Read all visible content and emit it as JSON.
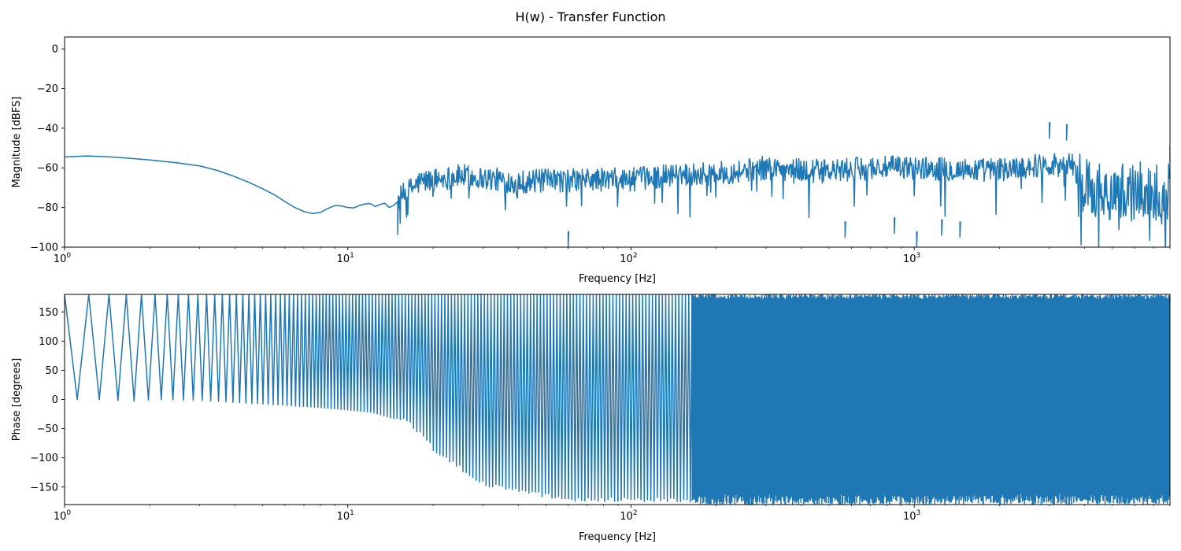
{
  "figure": {
    "title": "H(w) - Transfer Function"
  },
  "chart_data": [
    {
      "type": "line",
      "name": "magnitude",
      "xlabel": "Frequency [Hz]",
      "ylabel": "Magnitude [dBFS]",
      "xscale": "log",
      "xlim": [
        1,
        8000
      ],
      "ylim": [
        -100,
        6
      ],
      "xticks": [
        {
          "value": 1,
          "base": "10",
          "exp": "0"
        },
        {
          "value": 10,
          "base": "10",
          "exp": "1"
        },
        {
          "value": 100,
          "base": "10",
          "exp": "2"
        },
        {
          "value": 1000,
          "base": "10",
          "exp": "3"
        }
      ],
      "yticks": [
        {
          "value": 0,
          "label": "0"
        },
        {
          "value": -20,
          "label": "−20"
        },
        {
          "value": -40,
          "label": "−40"
        },
        {
          "value": -60,
          "label": "−60"
        },
        {
          "value": -80,
          "label": "−80"
        },
        {
          "value": -100,
          "label": "−100"
        }
      ],
      "grid": false,
      "color": "#1f77b4",
      "smooth_points": [
        [
          1,
          -54.5
        ],
        [
          1.2,
          -54.0
        ],
        [
          1.5,
          -54.6
        ],
        [
          1.8,
          -55.5
        ],
        [
          2.0,
          -56.0
        ],
        [
          2.5,
          -57.5
        ],
        [
          3.0,
          -59.0
        ],
        [
          3.5,
          -61.5
        ],
        [
          4.0,
          -64.5
        ],
        [
          4.5,
          -67.5
        ],
        [
          5.0,
          -70.5
        ],
        [
          5.5,
          -73.5
        ],
        [
          6.0,
          -77.0
        ],
        [
          6.5,
          -80.0
        ],
        [
          7.0,
          -82.0
        ],
        [
          7.5,
          -83.0
        ],
        [
          8.0,
          -82.5
        ],
        [
          8.5,
          -80.5
        ],
        [
          9.0,
          -79.0
        ],
        [
          9.5,
          -79.2
        ],
        [
          10.0,
          -80.0
        ],
        [
          10.5,
          -80.2
        ],
        [
          11.0,
          -79.0
        ],
        [
          11.5,
          -78.2
        ],
        [
          12.0,
          -78.0
        ],
        [
          12.5,
          -79.5
        ],
        [
          13.0,
          -78.5
        ],
        [
          13.5,
          -77.8
        ],
        [
          14.0,
          -80.0
        ],
        [
          14.5,
          -79.0
        ],
        [
          15.0,
          -77.0
        ]
      ],
      "noise_envelope": [
        [
          15,
          -76
        ],
        [
          18,
          -67
        ],
        [
          25,
          -64
        ],
        [
          40,
          -67
        ],
        [
          70,
          -66
        ],
        [
          100,
          -66
        ],
        [
          150,
          -63
        ],
        [
          200,
          -63
        ],
        [
          300,
          -60
        ],
        [
          500,
          -62
        ],
        [
          700,
          -60
        ],
        [
          1000,
          -60
        ],
        [
          1500,
          -61
        ],
        [
          2000,
          -61
        ],
        [
          3000,
          -58
        ],
        [
          3600,
          -58
        ],
        [
          4000,
          -70
        ],
        [
          5000,
          -72
        ],
        [
          7000,
          -72
        ],
        [
          8000,
          -72
        ]
      ],
      "notable_points": [
        [
          60,
          -100
        ],
        [
          570,
          -95
        ],
        [
          850,
          -93
        ],
        [
          1020,
          -100
        ],
        [
          1250,
          -94
        ],
        [
          1450,
          -95
        ],
        [
          3000,
          -45
        ],
        [
          3450,
          -46
        ],
        [
          8000,
          -57
        ]
      ]
    },
    {
      "type": "line",
      "name": "phase",
      "xlabel": "Frequency [Hz]",
      "ylabel": "Phase [degrees]",
      "xscale": "log",
      "xlim": [
        1,
        8000
      ],
      "ylim": [
        -180,
        180
      ],
      "xticks": [
        {
          "value": 1,
          "base": "10",
          "exp": "0"
        },
        {
          "value": 10,
          "base": "10",
          "exp": "1"
        },
        {
          "value": 100,
          "base": "10",
          "exp": "2"
        },
        {
          "value": 1000,
          "base": "10",
          "exp": "3"
        }
      ],
      "yticks": [
        {
          "value": 150,
          "label": "150"
        },
        {
          "value": 100,
          "label": "100"
        },
        {
          "value": 50,
          "label": "50"
        },
        {
          "value": 0,
          "label": "0"
        },
        {
          "value": -50,
          "label": "−50"
        },
        {
          "value": -100,
          "label": "−100"
        },
        {
          "value": -150,
          "label": "−150"
        }
      ],
      "grid": false,
      "color": "#1f77b4",
      "wrap_period_hz": 0.395,
      "onset_hz": 1.0,
      "min_envelope": [
        [
          1.2,
          0
        ],
        [
          1.6,
          -3
        ],
        [
          2.0,
          0
        ],
        [
          3.0,
          -2
        ],
        [
          5.0,
          -8
        ],
        [
          8.0,
          -14
        ],
        [
          12.0,
          -22
        ],
        [
          16.0,
          -40
        ],
        [
          20.0,
          -90
        ],
        [
          30.0,
          -150
        ],
        [
          60.0,
          -175
        ],
        [
          8000,
          -180
        ]
      ],
      "dense_from_hz": 160,
      "notable_points": [
        [
          18,
          -180
        ],
        [
          1080,
          -180
        ]
      ]
    }
  ]
}
